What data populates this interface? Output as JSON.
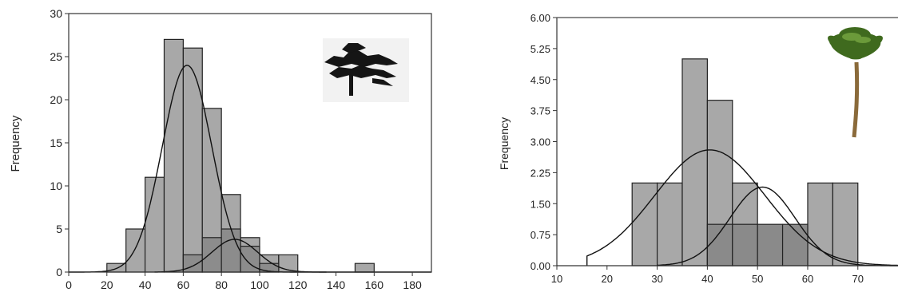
{
  "chart_data": [
    {
      "type": "bar",
      "title": "",
      "xlabel": "",
      "ylabel": "Frequency",
      "xlim": [
        0,
        190
      ],
      "ylim": [
        0,
        30
      ],
      "x_ticks": [
        "0",
        "20",
        "40",
        "60",
        "80",
        "100",
        "120",
        "140",
        "160",
        "180"
      ],
      "y_ticks": [
        "0",
        "5",
        "10",
        "15",
        "20",
        "25",
        "30"
      ],
      "grid": false,
      "legend": "none",
      "icon": "cedar-tree-icon",
      "bin_width": 10,
      "series": [
        {
          "bins": [
            {
              "x0": 20,
              "x1": 30,
              "value": 1
            },
            {
              "x0": 30,
              "x1": 40,
              "value": 5
            },
            {
              "x0": 40,
              "x1": 50,
              "value": 11
            },
            {
              "x0": 50,
              "x1": 60,
              "value": 27
            },
            {
              "x0": 60,
              "x1": 70,
              "value": 26
            },
            {
              "x0": 70,
              "x1": 80,
              "value": 19
            },
            {
              "x0": 80,
              "x1": 90,
              "value": 9
            },
            {
              "x0": 90,
              "x1": 100,
              "value": 4
            },
            {
              "x0": 100,
              "x1": 110,
              "value": 2
            },
            {
              "x0": 110,
              "x1": 120,
              "value": 2
            },
            {
              "x0": 150,
              "x1": 160,
              "value": 1
            }
          ],
          "color": "#a8a8a8"
        },
        {
          "bins": [
            {
              "x0": 60,
              "x1": 70,
              "value": 2
            },
            {
              "x0": 70,
              "x1": 80,
              "value": 4
            },
            {
              "x0": 80,
              "x1": 90,
              "value": 5
            },
            {
              "x0": 90,
              "x1": 100,
              "value": 3
            },
            {
              "x0": 100,
              "x1": 110,
              "value": 1
            }
          ],
          "color": "#8c8c8c"
        }
      ],
      "curves": [
        {
          "type": "normal",
          "mean": 62,
          "sd": 13,
          "peak": 24,
          "from": 0,
          "to": 190
        },
        {
          "type": "normal",
          "mean": 87,
          "sd": 12,
          "peak": 3.8,
          "from": 45,
          "to": 135
        }
      ]
    },
    {
      "type": "bar",
      "title": "",
      "xlabel": "",
      "ylabel": "Frequency",
      "xlim": [
        10,
        78
      ],
      "ylim": [
        0,
        6
      ],
      "x_ticks": [
        "10",
        "20",
        "30",
        "40",
        "50",
        "60",
        "70"
      ],
      "y_ticks": [
        "0.00",
        "0.75",
        "1.50",
        "2.25",
        "3.00",
        "3.75",
        "4.50",
        "5.25",
        "6.00"
      ],
      "grid": false,
      "legend": "none",
      "icon": "palm-tree-icon",
      "bin_width": 5,
      "series": [
        {
          "bins": [
            {
              "x0": 25,
              "x1": 30,
              "value": 2
            },
            {
              "x0": 30,
              "x1": 35,
              "value": 2
            },
            {
              "x0": 35,
              "x1": 40,
              "value": 5
            },
            {
              "x0": 40,
              "x1": 45,
              "value": 4
            },
            {
              "x0": 45,
              "x1": 50,
              "value": 2
            },
            {
              "x0": 60,
              "x1": 65,
              "value": 2
            },
            {
              "x0": 65,
              "x1": 70,
              "value": 2
            }
          ],
          "color": "#a8a8a8"
        },
        {
          "bins": [
            {
              "x0": 40,
              "x1": 45,
              "value": 1
            },
            {
              "x0": 45,
              "x1": 50,
              "value": 1
            },
            {
              "x0": 50,
              "x1": 55,
              "value": 1
            },
            {
              "x0": 55,
              "x1": 60,
              "value": 1
            }
          ],
          "color": "#8a8a8a"
        }
      ],
      "curves": [
        {
          "type": "normal",
          "mean": 40.5,
          "sd": 11,
          "peak": 2.8,
          "from": 16,
          "to": 78,
          "start_value": 0.37
        },
        {
          "type": "normal",
          "mean": 51,
          "sd": 6.5,
          "peak": 1.9,
          "from": 30,
          "to": 78
        }
      ]
    }
  ]
}
